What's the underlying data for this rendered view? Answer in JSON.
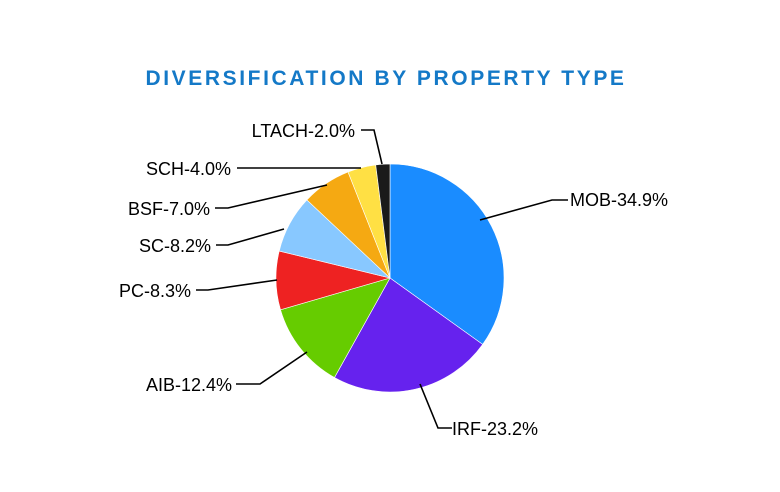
{
  "chart_data": {
    "type": "pie",
    "title": "DIVERSIFICATION BY PROPERTY TYPE",
    "title_color": "#1479c7",
    "slices": [
      {
        "category": "MOB",
        "value": 34.9,
        "label": "MOB-34.9%",
        "color": "#1a8cff"
      },
      {
        "category": "IRF",
        "value": 23.2,
        "label": "IRF-23.2%",
        "color": "#6622ee"
      },
      {
        "category": "AIB",
        "value": 12.4,
        "label": "AIB-12.4%",
        "color": "#66cc00"
      },
      {
        "category": "PC",
        "value": 8.3,
        "label": "PC-8.3%",
        "color": "#ee2222"
      },
      {
        "category": "SC",
        "value": 8.2,
        "label": "SC-8.2%",
        "color": "#88c8ff"
      },
      {
        "category": "BSF",
        "value": 7.0,
        "label": "BSF-7.0%",
        "color": "#f5a912"
      },
      {
        "category": "SCH",
        "value": 4.0,
        "label": "SCH-4.0%",
        "color": "#ffe044"
      },
      {
        "category": "LTACH",
        "value": 2.0,
        "label": "LTACH-2.0%",
        "color": "#1a1a1a"
      }
    ],
    "start": "12 o'clock",
    "direction": "clockwise",
    "legend": "none",
    "labels": "outside with leader lines"
  }
}
